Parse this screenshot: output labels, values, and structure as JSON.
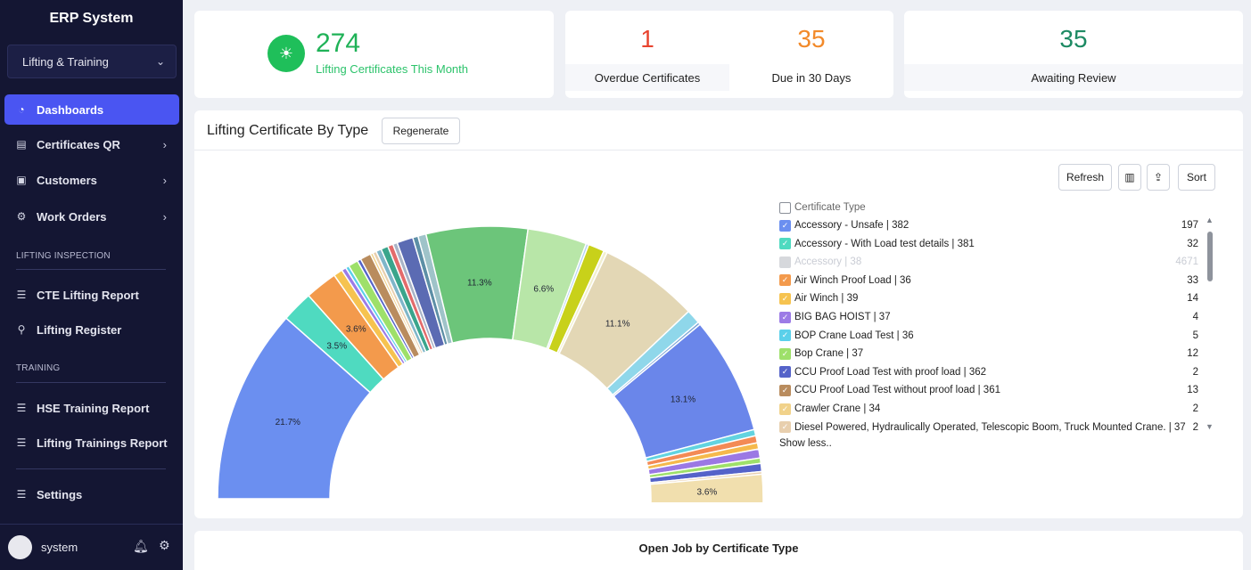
{
  "sidebar": {
    "brand": "ERP System",
    "module": "Lifting & Training",
    "items": [
      {
        "label": "Dashboards",
        "icon": "dashboard-icon",
        "arrow": ""
      },
      {
        "label": "Certificates QR",
        "icon": "certificate-icon",
        "arrow": "›"
      },
      {
        "label": "Customers",
        "icon": "customers-icon",
        "arrow": "›"
      },
      {
        "label": "Work Orders",
        "icon": "work-orders-icon",
        "arrow": "›"
      }
    ],
    "section_lifting": "LIFTING INSPECTION",
    "lifting_items": [
      {
        "label": "CTE Lifting Report",
        "icon": "list-icon"
      },
      {
        "label": "Lifting Register",
        "icon": "register-icon"
      }
    ],
    "section_training": "TRAINING",
    "training_items": [
      {
        "label": "HSE Training Report",
        "icon": "list-icon"
      },
      {
        "label": "Lifting Trainings Report",
        "icon": "list-icon"
      }
    ],
    "settings": "Settings",
    "user": "system",
    "chevron": "⌄"
  },
  "kpi": {
    "value": "274",
    "label": "Lifting Certificates This Month",
    "icon": "sunrise-icon"
  },
  "stats": {
    "overdue_value": "1",
    "overdue_label": "Overdue Certificates",
    "due_value": "35",
    "due_label": "Due in 30 Days",
    "review_value": "35",
    "review_label": "Awaiting Review"
  },
  "panel": {
    "title": "Lifting Certificate By Type",
    "regenerate": "Regenerate",
    "refresh": "Refresh",
    "sort": "Sort",
    "legend_header": "Certificate Type",
    "show_less": "Show less..",
    "legend": [
      {
        "label": "Accessory - Unsafe | 382",
        "value": "197",
        "color": "#6b8ff0",
        "checked": true
      },
      {
        "label": "Accessory - With Load test details | 381",
        "value": "32",
        "color": "#4fdac0",
        "checked": true
      },
      {
        "label": "Accessory | 38",
        "value": "4671",
        "color": "#d6d8dc",
        "checked": false
      },
      {
        "label": "Air Winch Proof Load | 36",
        "value": "33",
        "color": "#f39a4c",
        "checked": true
      },
      {
        "label": "Air Winch | 39",
        "value": "14",
        "color": "#f6c350",
        "checked": true
      },
      {
        "label": "BIG BAG HOIST | 37",
        "value": "4",
        "color": "#9c7be6",
        "checked": true
      },
      {
        "label": "BOP Crane Load Test | 36",
        "value": "5",
        "color": "#5bd0ea",
        "checked": true
      },
      {
        "label": "Bop Crane | 37",
        "value": "12",
        "color": "#9ee06a",
        "checked": true
      },
      {
        "label": "CCU Proof Load Test with proof load | 362",
        "value": "2",
        "color": "#5563c9",
        "checked": true
      },
      {
        "label": "CCU Proof Load Test without proof load | 361",
        "value": "13",
        "color": "#b98c5e",
        "checked": true
      },
      {
        "label": "Crawler Crane | 34",
        "value": "2",
        "color": "#f1d28a",
        "checked": true
      },
      {
        "label": "Diesel Powered, Hydraulically Operated, Telescopic Boom, Truck Mounted Crane. | 37",
        "value": "2",
        "color": "#e8cfae",
        "checked": true
      }
    ]
  },
  "chart_data": {
    "type": "pie",
    "variant": "half-donut",
    "labels_shown": [
      "21.7%",
      "3.5%",
      "3.6%",
      "11.3%",
      "6.6%",
      "11.1%",
      "13.1%",
      "3.6%"
    ],
    "slices": [
      {
        "value": 21.7,
        "color": "#6b8ff0",
        "label": "21.7%"
      },
      {
        "value": 3.5,
        "color": "#4fdac0",
        "label": "3.5%"
      },
      {
        "value": 3.6,
        "color": "#f39a4c",
        "label": "3.6%"
      },
      {
        "value": 1.0,
        "color": "#f6c350",
        "label": ""
      },
      {
        "value": 0.5,
        "color": "#9c7be6",
        "label": ""
      },
      {
        "value": 0.4,
        "color": "#5bd0ea",
        "label": ""
      },
      {
        "value": 1.1,
        "color": "#9ee06a",
        "label": ""
      },
      {
        "value": 0.4,
        "color": "#5563c9",
        "label": ""
      },
      {
        "value": 1.2,
        "color": "#b98c5e",
        "label": ""
      },
      {
        "value": 0.3,
        "color": "#f1d28a",
        "label": ""
      },
      {
        "value": 0.4,
        "color": "#e8cfae",
        "label": ""
      },
      {
        "value": 0.6,
        "color": "#7fb6c9",
        "label": ""
      },
      {
        "value": 0.8,
        "color": "#3aa58c",
        "label": ""
      },
      {
        "value": 0.6,
        "color": "#e36b6b",
        "label": ""
      },
      {
        "value": 0.5,
        "color": "#a9b4c7",
        "label": ""
      },
      {
        "value": 1.8,
        "color": "#5b6bb3",
        "label": ""
      },
      {
        "value": 0.6,
        "color": "#5d8fa6",
        "label": ""
      },
      {
        "value": 0.9,
        "color": "#9fc3c9",
        "label": ""
      },
      {
        "value": 11.3,
        "color": "#6cc57a",
        "label": "11.3%"
      },
      {
        "value": 6.6,
        "color": "#b8e6a8",
        "label": "6.6%"
      },
      {
        "value": 0.3,
        "color": "#b6d4f2",
        "label": ""
      },
      {
        "value": 1.8,
        "color": "#c8d11a",
        "label": ""
      },
      {
        "value": 0.4,
        "color": "#f2efcf",
        "label": ""
      },
      {
        "value": 11.1,
        "color": "#e3d7b5",
        "label": "11.1%"
      },
      {
        "value": 1.6,
        "color": "#8fd7ea",
        "label": ""
      },
      {
        "value": 0.3,
        "color": "#7da6d8",
        "label": ""
      },
      {
        "value": 13.1,
        "color": "#6a86ea",
        "label": "13.1%"
      },
      {
        "value": 0.7,
        "color": "#62d3e0",
        "label": ""
      },
      {
        "value": 0.8,
        "color": "#f38a55",
        "label": ""
      },
      {
        "value": 0.7,
        "color": "#f5b94c",
        "label": ""
      },
      {
        "value": 1.0,
        "color": "#9b78e4",
        "label": ""
      },
      {
        "value": 0.6,
        "color": "#9ee06a",
        "label": ""
      },
      {
        "value": 0.9,
        "color": "#5563c9",
        "label": ""
      },
      {
        "value": 0.3,
        "color": "#e8cfae",
        "label": ""
      },
      {
        "value": 3.6,
        "color": "#f1dfae",
        "label": "3.6%"
      }
    ]
  },
  "bottom": {
    "title": "Open Job by Certificate Type"
  }
}
